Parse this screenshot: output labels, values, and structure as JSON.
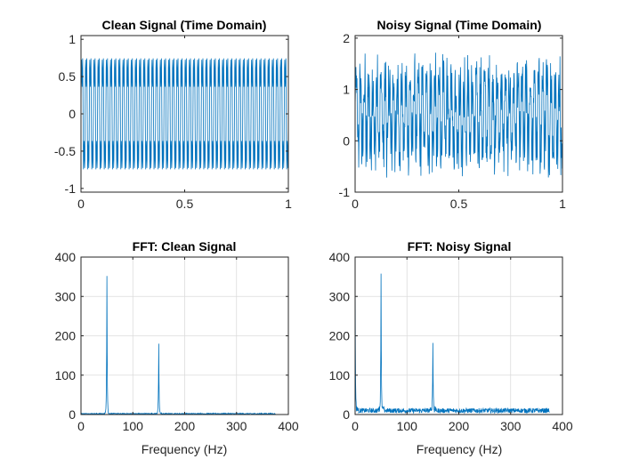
{
  "colors": {
    "line": "#0072BD",
    "axis": "#262626",
    "grid": "#dcdcdc"
  },
  "chart_data": [
    {
      "id": "clean-time",
      "type": "line",
      "title": "Clean Signal (Time Domain)",
      "xlabel": "",
      "ylabel": "",
      "xlim": [
        0,
        1
      ],
      "ylim": [
        -1.05,
        1.05
      ],
      "xticks": [
        0,
        0.5,
        1
      ],
      "xticklabels": [
        "0",
        "0.5",
        "1"
      ],
      "yticks": [
        -1,
        -0.5,
        0,
        0.5,
        1
      ],
      "yticklabels": [
        "-1",
        "-0.5",
        "0",
        "0.5",
        "1"
      ],
      "grid": false,
      "signal": {
        "kind": "sum_of_sines",
        "components": [
          {
            "frequency_hz": 50,
            "amplitude": 0.7
          },
          {
            "frequency_hz": 150,
            "amplitude": 0.35
          }
        ],
        "samples": 750
      }
    },
    {
      "id": "noisy-time",
      "type": "line",
      "title": "Noisy Signal (Time Domain)",
      "xlabel": "",
      "ylabel": "",
      "xlim": [
        0,
        1
      ],
      "ylim": [
        -1,
        2.05
      ],
      "xticks": [
        0,
        0.5,
        1
      ],
      "xticklabels": [
        "0",
        "0.5",
        "1"
      ],
      "yticks": [
        -1,
        0,
        1,
        2
      ],
      "yticklabels": [
        "-1",
        "0",
        "1",
        "2"
      ],
      "grid": false,
      "signal": {
        "kind": "sum_of_sines_plus_noise",
        "components": [
          {
            "frequency_hz": 50,
            "amplitude": 0.7
          },
          {
            "frequency_hz": 150,
            "amplitude": 0.35
          }
        ],
        "offset": 0.5,
        "noise_amplitude": 0.8,
        "samples": 750
      }
    },
    {
      "id": "clean-fft",
      "type": "line",
      "title": "FFT: Clean Signal",
      "xlabel": "Frequency (Hz)",
      "ylabel": "",
      "xlim": [
        0,
        400
      ],
      "ylim": [
        0,
        400
      ],
      "xticks": [
        0,
        100,
        200,
        300,
        400
      ],
      "xticklabels": [
        "0",
        "100",
        "200",
        "300",
        "400"
      ],
      "yticks": [
        0,
        100,
        200,
        300,
        400
      ],
      "yticklabels": [
        "0",
        "100",
        "200",
        "300",
        "400"
      ],
      "grid": true,
      "spectrum": {
        "peaks": [
          {
            "frequency_hz": 50,
            "magnitude": 352
          },
          {
            "frequency_hz": 150,
            "magnitude": 180
          }
        ],
        "floor": 2,
        "max_frequency_hz": 375
      }
    },
    {
      "id": "noisy-fft",
      "type": "line",
      "title": "FFT: Noisy Signal",
      "xlabel": "Frequency (Hz)",
      "ylabel": "",
      "xlim": [
        0,
        400
      ],
      "ylim": [
        0,
        400
      ],
      "xticks": [
        0,
        100,
        200,
        300,
        400
      ],
      "xticklabels": [
        "0",
        "100",
        "200",
        "300",
        "400"
      ],
      "yticks": [
        0,
        100,
        200,
        300,
        400
      ],
      "yticklabels": [
        "0",
        "100",
        "200",
        "300",
        "400"
      ],
      "grid": true,
      "spectrum": {
        "peaks": [
          {
            "frequency_hz": 0,
            "magnitude": 380
          },
          {
            "frequency_hz": 50,
            "magnitude": 358
          },
          {
            "frequency_hz": 150,
            "magnitude": 182
          }
        ],
        "floor": 10,
        "max_frequency_hz": 375
      }
    }
  ]
}
